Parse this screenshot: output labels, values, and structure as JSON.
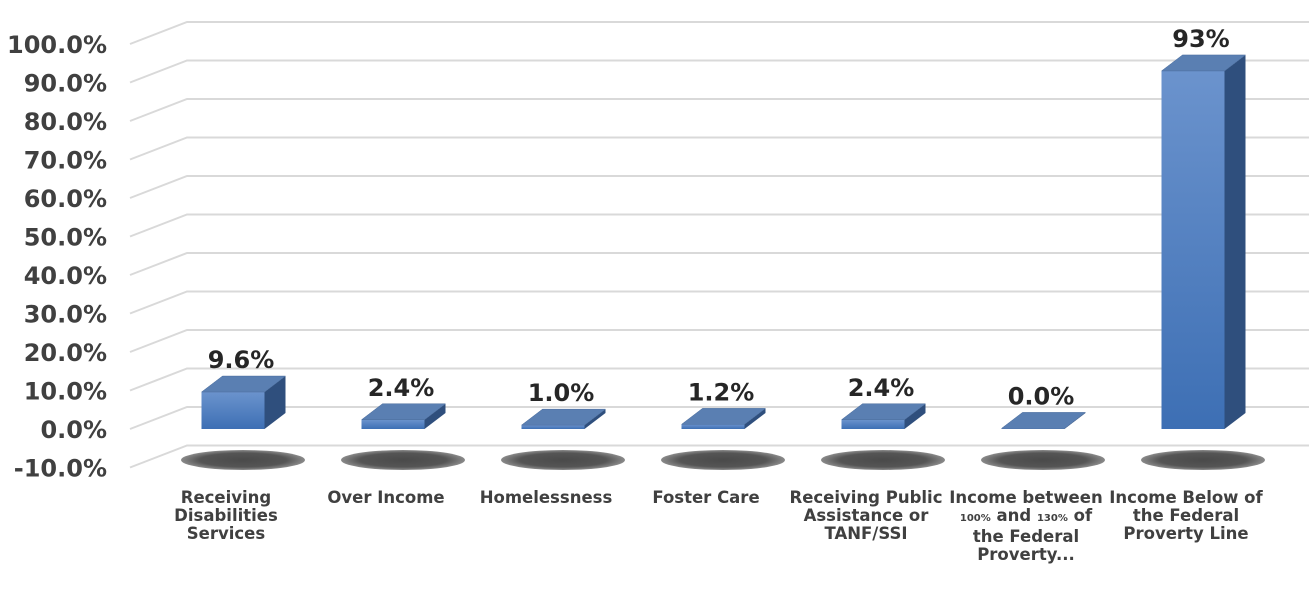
{
  "chart_data": {
    "type": "bar",
    "categories": [
      "Receiving Disabilities Services",
      "Over Income",
      "Homelessness",
      "Foster Care",
      "Receiving Public Assistance or TANF/SSI",
      "Income between 100% and 130% of the Federal Proverty...",
      "Income Below of the Federal Proverty Line"
    ],
    "values": [
      9.6,
      2.4,
      1.0,
      1.2,
      2.4,
      0.0,
      93
    ],
    "data_labels": [
      "9.6%",
      "2.4%",
      "1.0%",
      "1.2%",
      "2.4%",
      "0.0%",
      "93%"
    ],
    "y_tick_labels": [
      "-10.0%",
      "0.0%",
      "10.0%",
      "20.0%",
      "30.0%",
      "40.0%",
      "50.0%",
      "60.0%",
      "70.0%",
      "80.0%",
      "90.0%",
      "100.0%"
    ],
    "ylim": [
      -10,
      100
    ],
    "grid": true,
    "style": "3d-column",
    "colors": {
      "bar_front": "#4f81c7",
      "bar_top": "#5a7fb2",
      "bar_side": "#2f4f7d",
      "grid": "#d9d9d9",
      "shadow": "#5a5a5a"
    }
  }
}
